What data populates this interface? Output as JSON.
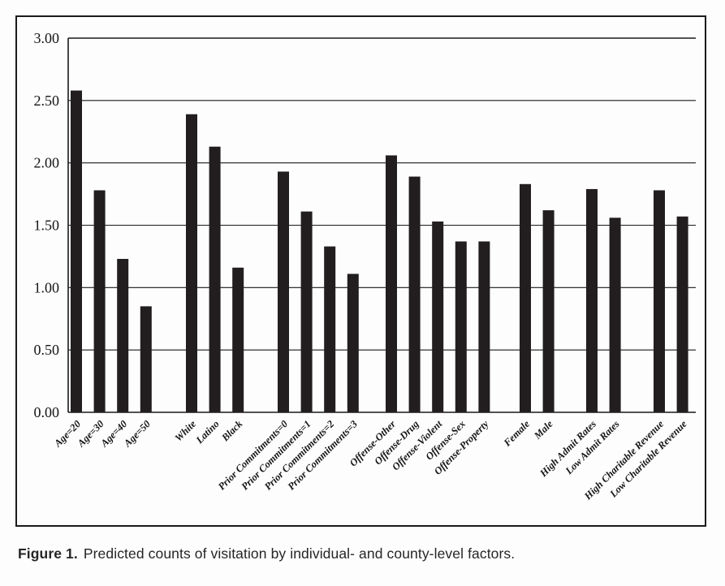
{
  "figure": {
    "caption_label": "Figure 1.",
    "caption_text": "Predicted counts of visitation by individual- and county-level factors."
  },
  "chart_data": {
    "type": "bar",
    "title": "",
    "xlabel": "",
    "ylabel": "",
    "ylim": [
      0,
      3
    ],
    "ytick_step": 0.5,
    "ytick_labels": [
      "0.00",
      "0.50",
      "1.00",
      "1.50",
      "2.00",
      "2.50",
      "3.00"
    ],
    "grid": true,
    "legend": "none",
    "bar_color": "#221e1f",
    "axis_color": "#1a1a1a",
    "groups": [
      {
        "name": "age",
        "bars": [
          {
            "label": "Age=20",
            "value": 2.58
          },
          {
            "label": "Age=30",
            "value": 1.78
          },
          {
            "label": "Age=40",
            "value": 1.23
          },
          {
            "label": "Age=50",
            "value": 0.85
          }
        ]
      },
      {
        "name": "race-ethnicity",
        "bars": [
          {
            "label": "White",
            "value": 2.39
          },
          {
            "label": "Latino",
            "value": 2.13
          },
          {
            "label": "Black",
            "value": 1.16
          }
        ]
      },
      {
        "name": "prior-commitments",
        "bars": [
          {
            "label": "Prior Commitments=0",
            "value": 1.93
          },
          {
            "label": "Prior Commitments=1",
            "value": 1.61
          },
          {
            "label": "Prior Commitments=2",
            "value": 1.33
          },
          {
            "label": "Prior Commitments=3",
            "value": 1.11
          }
        ]
      },
      {
        "name": "offense-type",
        "bars": [
          {
            "label": "Offense-Other",
            "value": 2.06
          },
          {
            "label": "Offense-Drug",
            "value": 1.89
          },
          {
            "label": "Offense-Violent",
            "value": 1.53
          },
          {
            "label": "Offense-Sex",
            "value": 1.37
          },
          {
            "label": "Offense-Property",
            "value": 1.37
          }
        ]
      },
      {
        "name": "sex",
        "bars": [
          {
            "label": "Female",
            "value": 1.83
          },
          {
            "label": "Male",
            "value": 1.62
          }
        ]
      },
      {
        "name": "admit-rates",
        "bars": [
          {
            "label": "High Admit Rates",
            "value": 1.79
          },
          {
            "label": "Low Admit Rates",
            "value": 1.56
          }
        ]
      },
      {
        "name": "charitable-revenue",
        "bars": [
          {
            "label": "High Charitable Revenue",
            "value": 1.78
          },
          {
            "label": "Low Charitable Revenue",
            "value": 1.57
          }
        ]
      }
    ]
  }
}
